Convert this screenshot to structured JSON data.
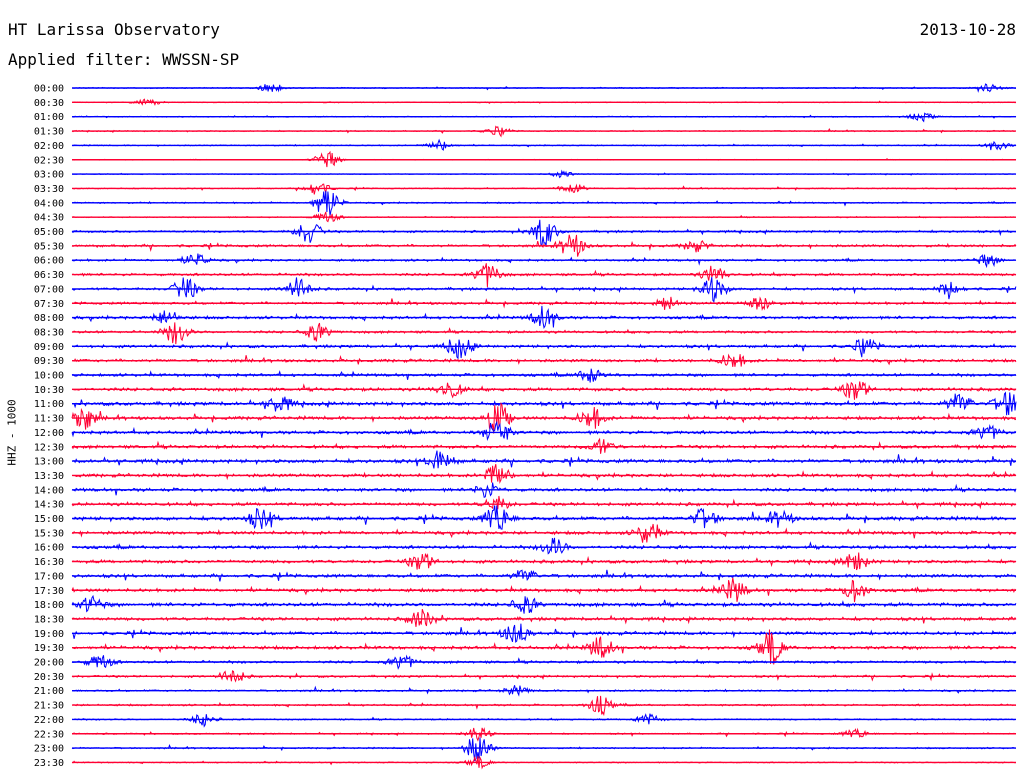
{
  "header": {
    "title": "HT Larissa Observatory",
    "date": "2013-10-28",
    "filter": "Applied filter: WWSSN-SP"
  },
  "colors": {
    "background": "#ffffff",
    "blue": "#0000ff",
    "red": "#ff0033",
    "text": "#000000"
  },
  "chart_data": {
    "type": "line",
    "title": "HT Larissa Observatory",
    "subtitle": "Applied filter: WWSSN-SP",
    "date": "2013-10-28",
    "ylabel": "HHZ - 1000",
    "xlabel": "",
    "grid": false,
    "legend": "none",
    "row_colors": [
      "#0000ff",
      "#ff0033"
    ],
    "rows": [
      {
        "label": "00:00",
        "activity": 0.15,
        "events": [
          {
            "t": 0.21,
            "a": 0.45
          },
          {
            "t": 0.97,
            "a": 0.4
          }
        ]
      },
      {
        "label": "00:30",
        "activity": 0.12,
        "events": [
          {
            "t": 0.08,
            "a": 0.35
          }
        ]
      },
      {
        "label": "01:00",
        "activity": 0.15,
        "events": [
          {
            "t": 0.9,
            "a": 0.45
          }
        ]
      },
      {
        "label": "01:30",
        "activity": 0.15,
        "events": [
          {
            "t": 0.45,
            "a": 0.45
          }
        ]
      },
      {
        "label": "02:00",
        "activity": 0.15,
        "events": [
          {
            "t": 0.39,
            "a": 0.55
          },
          {
            "t": 0.98,
            "a": 0.45
          }
        ]
      },
      {
        "label": "02:30",
        "activity": 0.1,
        "events": [
          {
            "t": 0.27,
            "a": 0.9
          }
        ]
      },
      {
        "label": "03:00",
        "activity": 0.12,
        "events": [
          {
            "t": 0.52,
            "a": 0.35
          }
        ]
      },
      {
        "label": "03:30",
        "activity": 0.15,
        "events": [
          {
            "t": 0.26,
            "a": 0.8
          },
          {
            "t": 0.53,
            "a": 0.6
          }
        ]
      },
      {
        "label": "04:00",
        "activity": 0.2,
        "events": [
          {
            "t": 0.27,
            "a": 1.8
          }
        ]
      },
      {
        "label": "04:30",
        "activity": 0.15,
        "events": [
          {
            "t": 0.27,
            "a": 0.6
          }
        ]
      },
      {
        "label": "05:00",
        "activity": 0.3,
        "events": [
          {
            "t": 0.25,
            "a": 1.3
          },
          {
            "t": 0.5,
            "a": 1.6
          }
        ]
      },
      {
        "label": "05:30",
        "activity": 0.35,
        "events": [
          {
            "t": 0.53,
            "a": 1.3
          },
          {
            "t": 0.66,
            "a": 0.6
          }
        ]
      },
      {
        "label": "06:00",
        "activity": 0.3,
        "events": [
          {
            "t": 0.13,
            "a": 0.7
          },
          {
            "t": 0.97,
            "a": 0.6
          }
        ]
      },
      {
        "label": "06:30",
        "activity": 0.35,
        "events": [
          {
            "t": 0.44,
            "a": 1.3
          },
          {
            "t": 0.68,
            "a": 0.9
          }
        ]
      },
      {
        "label": "07:00",
        "activity": 0.35,
        "events": [
          {
            "t": 0.12,
            "a": 1.2
          },
          {
            "t": 0.24,
            "a": 1.2
          },
          {
            "t": 0.68,
            "a": 1.3
          },
          {
            "t": 0.93,
            "a": 0.7
          }
        ]
      },
      {
        "label": "07:30",
        "activity": 0.35,
        "events": [
          {
            "t": 0.63,
            "a": 0.7
          },
          {
            "t": 0.73,
            "a": 0.8
          }
        ]
      },
      {
        "label": "08:00",
        "activity": 0.4,
        "events": [
          {
            "t": 0.1,
            "a": 0.8
          },
          {
            "t": 0.5,
            "a": 1.2
          }
        ]
      },
      {
        "label": "08:30",
        "activity": 0.35,
        "events": [
          {
            "t": 0.11,
            "a": 1.3
          },
          {
            "t": 0.26,
            "a": 0.9
          }
        ]
      },
      {
        "label": "09:00",
        "activity": 0.4,
        "events": [
          {
            "t": 0.41,
            "a": 1.2
          },
          {
            "t": 0.84,
            "a": 0.8
          }
        ]
      },
      {
        "label": "09:30",
        "activity": 0.4,
        "events": [
          {
            "t": 0.7,
            "a": 0.9
          }
        ]
      },
      {
        "label": "10:00",
        "activity": 0.4,
        "events": [
          {
            "t": 0.55,
            "a": 0.8
          }
        ]
      },
      {
        "label": "10:30",
        "activity": 0.45,
        "events": [
          {
            "t": 0.4,
            "a": 0.9
          },
          {
            "t": 0.83,
            "a": 1.2
          }
        ]
      },
      {
        "label": "11:00",
        "activity": 0.5,
        "events": [
          {
            "t": 0.22,
            "a": 0.9
          },
          {
            "t": 0.94,
            "a": 1.1
          },
          {
            "t": 0.99,
            "a": 1.4
          }
        ]
      },
      {
        "label": "11:30",
        "activity": 0.45,
        "events": [
          {
            "t": 0.01,
            "a": 1.5
          },
          {
            "t": 0.45,
            "a": 1.8
          },
          {
            "t": 0.55,
            "a": 1.2
          }
        ]
      },
      {
        "label": "12:00",
        "activity": 0.45,
        "events": [
          {
            "t": 0.45,
            "a": 1.5
          },
          {
            "t": 0.97,
            "a": 0.8
          }
        ]
      },
      {
        "label": "12:30",
        "activity": 0.45,
        "events": [
          {
            "t": 0.56,
            "a": 0.8
          }
        ]
      },
      {
        "label": "13:00",
        "activity": 0.5,
        "events": [
          {
            "t": 0.39,
            "a": 1.2
          }
        ]
      },
      {
        "label": "13:30",
        "activity": 0.45,
        "events": [
          {
            "t": 0.45,
            "a": 1.2
          }
        ]
      },
      {
        "label": "14:00",
        "activity": 0.45,
        "events": [
          {
            "t": 0.44,
            "a": 0.8
          }
        ]
      },
      {
        "label": "14:30",
        "activity": 0.45,
        "events": [
          {
            "t": 0.45,
            "a": 0.8
          }
        ]
      },
      {
        "label": "15:00",
        "activity": 0.5,
        "events": [
          {
            "t": 0.2,
            "a": 1.1
          },
          {
            "t": 0.45,
            "a": 1.6
          },
          {
            "t": 0.67,
            "a": 1.1
          },
          {
            "t": 0.75,
            "a": 0.8
          }
        ]
      },
      {
        "label": "15:30",
        "activity": 0.45,
        "events": [
          {
            "t": 0.61,
            "a": 1.2
          }
        ]
      },
      {
        "label": "16:00",
        "activity": 0.45,
        "events": [
          {
            "t": 0.51,
            "a": 1.0
          }
        ]
      },
      {
        "label": "16:30",
        "activity": 0.45,
        "events": [
          {
            "t": 0.37,
            "a": 1.0
          },
          {
            "t": 0.83,
            "a": 1.0
          }
        ]
      },
      {
        "label": "17:00",
        "activity": 0.45,
        "events": [
          {
            "t": 0.48,
            "a": 0.7
          }
        ]
      },
      {
        "label": "17:30",
        "activity": 0.45,
        "events": [
          {
            "t": 0.7,
            "a": 1.3
          },
          {
            "t": 0.83,
            "a": 1.1
          }
        ]
      },
      {
        "label": "18:00",
        "activity": 0.5,
        "events": [
          {
            "t": 0.02,
            "a": 0.8
          },
          {
            "t": 0.48,
            "a": 0.9
          }
        ]
      },
      {
        "label": "18:30",
        "activity": 0.45,
        "events": [
          {
            "t": 0.37,
            "a": 1.0
          }
        ]
      },
      {
        "label": "19:00",
        "activity": 0.45,
        "events": [
          {
            "t": 0.47,
            "a": 1.2
          }
        ]
      },
      {
        "label": "19:30",
        "activity": 0.45,
        "events": [
          {
            "t": 0.56,
            "a": 1.2
          },
          {
            "t": 0.74,
            "a": 1.8
          }
        ]
      },
      {
        "label": "20:00",
        "activity": 0.35,
        "events": [
          {
            "t": 0.03,
            "a": 0.8
          },
          {
            "t": 0.35,
            "a": 0.8
          }
        ]
      },
      {
        "label": "20:30",
        "activity": 0.3,
        "events": [
          {
            "t": 0.17,
            "a": 0.8
          }
        ]
      },
      {
        "label": "21:00",
        "activity": 0.25,
        "events": [
          {
            "t": 0.47,
            "a": 0.5
          }
        ]
      },
      {
        "label": "21:30",
        "activity": 0.25,
        "events": [
          {
            "t": 0.56,
            "a": 1.0
          }
        ]
      },
      {
        "label": "22:00",
        "activity": 0.2,
        "events": [
          {
            "t": 0.14,
            "a": 0.7
          },
          {
            "t": 0.61,
            "a": 0.6
          }
        ]
      },
      {
        "label": "22:30",
        "activity": 0.2,
        "events": [
          {
            "t": 0.43,
            "a": 0.7
          },
          {
            "t": 0.83,
            "a": 0.5
          }
        ]
      },
      {
        "label": "23:00",
        "activity": 0.2,
        "events": [
          {
            "t": 0.43,
            "a": 1.6
          }
        ]
      },
      {
        "label": "23:30",
        "activity": 0.15,
        "events": [
          {
            "t": 0.43,
            "a": 0.6
          }
        ]
      }
    ]
  }
}
